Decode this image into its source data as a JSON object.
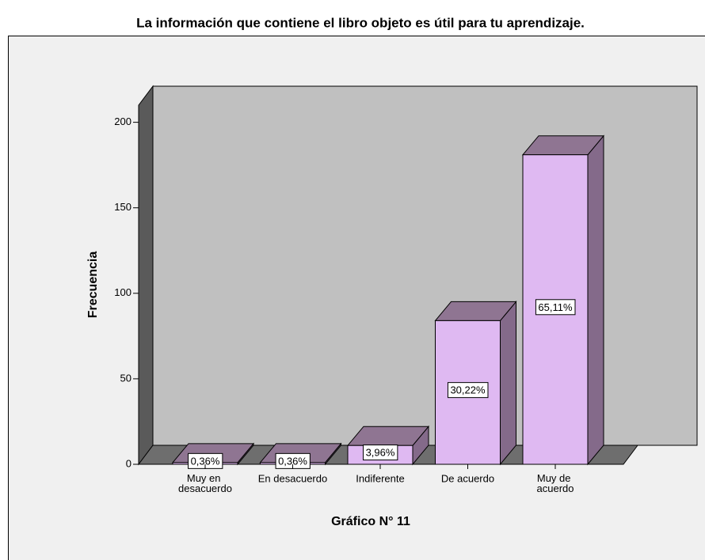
{
  "chart_data": {
    "type": "bar3d",
    "title": "La información que contiene el  libro objeto es útil para tu aprendizaje.",
    "y_label": "Frecuencia",
    "x_label": "Gráfico N° 11",
    "categories": [
      "Muy en desacuerdo",
      "En desacuerdo",
      "Indiferente",
      "De acuerdo",
      "Muy de acuerdo"
    ],
    "values": [
      1,
      1,
      11,
      84,
      181
    ],
    "percent_labels": [
      "0,36%",
      "0,36%",
      "3,96%",
      "30,22%",
      "65,11%"
    ],
    "color": "#dfb9f2",
    "ylim": [
      0,
      210
    ],
    "yticks": [
      0,
      50,
      100,
      150,
      200
    ]
  }
}
